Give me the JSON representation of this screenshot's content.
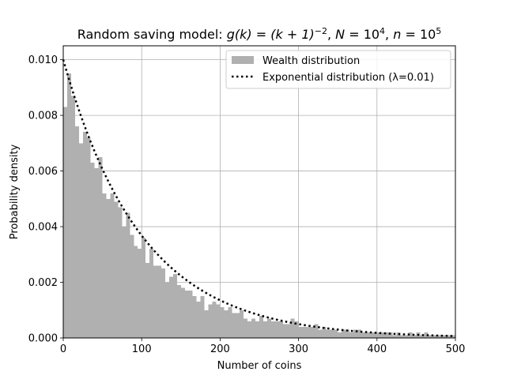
{
  "chart_data": {
    "type": "bar",
    "title": {
      "prefix": "Random saving model: ",
      "formula": "g(k) = (k + 1)",
      "formula_exp": "−2",
      "n_upper": "N",
      "n_upper_base": "10",
      "n_upper_exp": "4",
      "n_lower": "n",
      "n_lower_base": "10",
      "n_lower_exp": "5"
    },
    "xlabel": "Number of coins",
    "ylabel": "Probability density",
    "xlim": [
      0,
      500
    ],
    "ylim": [
      0,
      0.0105
    ],
    "x_ticks": [
      "0",
      "100",
      "200",
      "300",
      "400",
      "500"
    ],
    "y_ticks": [
      "0.000",
      "0.002",
      "0.004",
      "0.006",
      "0.008",
      "0.010"
    ],
    "grid": true,
    "legend_position": "top-right",
    "colors": {
      "bars": "#b0b0b0",
      "line": "#000000",
      "grid": "#b0b0b0"
    },
    "series": [
      {
        "name": "Wealth distribution",
        "kind": "histogram",
        "bin_width": 5,
        "x_start": 0,
        "values": [
          0.0083,
          0.0095,
          0.0087,
          0.0076,
          0.007,
          0.0074,
          0.0072,
          0.0063,
          0.0061,
          0.0065,
          0.0052,
          0.005,
          0.0052,
          0.0049,
          0.0047,
          0.004,
          0.0045,
          0.0037,
          0.0033,
          0.0032,
          0.0036,
          0.0027,
          0.0032,
          0.0026,
          0.0026,
          0.0025,
          0.002,
          0.0022,
          0.0023,
          0.0019,
          0.0018,
          0.0017,
          0.0017,
          0.0015,
          0.0013,
          0.0015,
          0.001,
          0.0012,
          0.0013,
          0.0012,
          0.0011,
          0.001,
          0.0011,
          0.0009,
          0.0009,
          0.001,
          0.0007,
          0.0006,
          0.0007,
          0.0006,
          0.0008,
          0.0006,
          0.0007,
          0.0006,
          0.0006,
          0.0006,
          0.0005,
          0.0005,
          0.0007,
          0.0006,
          0.0004,
          0.0004,
          0.0004,
          0.0004,
          0.0005,
          0.0003,
          0.0004,
          0.0003,
          0.0003,
          0.0003,
          0.0002,
          0.0003,
          0.0003,
          0.0002,
          0.0003,
          0.0003,
          0.0002,
          0.0002,
          0.0002,
          0.0002,
          0.0002,
          0.0002,
          0.0002,
          0.0002,
          0.0001,
          0.0002,
          0.0001,
          0.0001,
          0.0002,
          0.0001,
          0.0002,
          0.0001,
          0.0002,
          0.0001,
          0.0001,
          0.0001,
          0.0001,
          0.0001,
          0.0001,
          0.0001
        ]
      },
      {
        "name": "Exponential distribution (λ=0.01)",
        "kind": "line",
        "style": "dotted",
        "lambda": 0.01,
        "x": [
          0,
          10,
          20,
          30,
          40,
          50,
          60,
          70,
          80,
          90,
          100,
          120,
          140,
          160,
          180,
          200,
          220,
          240,
          260,
          280,
          300,
          320,
          340,
          360,
          380,
          400,
          420,
          440,
          460,
          480,
          500
        ],
        "y": [
          0.01,
          0.00905,
          0.00819,
          0.00741,
          0.0067,
          0.00607,
          0.00549,
          0.00497,
          0.00449,
          0.00407,
          0.00368,
          0.00301,
          0.00247,
          0.00202,
          0.00165,
          0.00135,
          0.00111,
          0.00091,
          0.00074,
          0.00061,
          0.0005,
          0.00041,
          0.00033,
          0.00027,
          0.00022,
          0.00018,
          0.00015,
          0.00012,
          0.0001,
          8e-05,
          7e-05
        ]
      }
    ]
  }
}
